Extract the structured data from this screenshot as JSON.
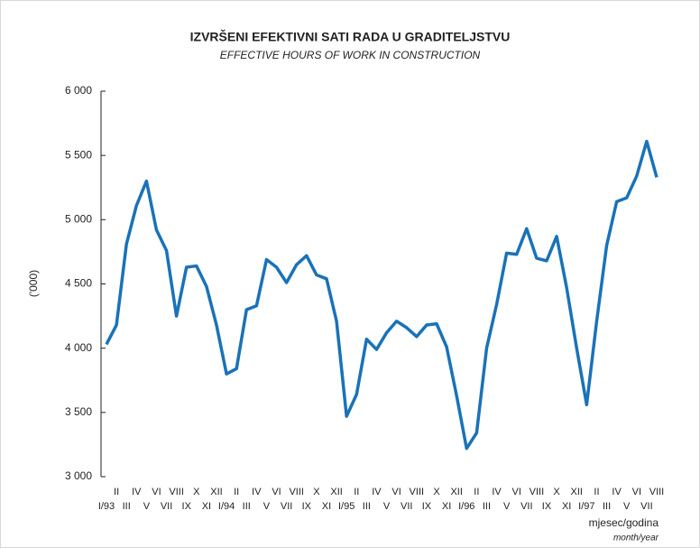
{
  "chart_data": {
    "type": "line",
    "title": "IZVRŠENI EFEKTIVNI SATI RADA U GRADITELJSTVU",
    "subtitle": "EFFECTIVE HOURS OF WORK IN CONSTRUCTION",
    "ylabel": "('000)",
    "xlabel": "mjesec/godina",
    "xlabel_en": "month/year",
    "categories": [
      "I/93",
      "II",
      "III",
      "IV",
      "V",
      "VI",
      "VII",
      "VIII",
      "IX",
      "X",
      "XI",
      "XII",
      "I/94",
      "II",
      "III",
      "IV",
      "V",
      "VI",
      "VII",
      "VIII",
      "IX",
      "X",
      "XI",
      "XII",
      "I/95",
      "II",
      "III",
      "IV",
      "V",
      "VI",
      "VII",
      "VIII",
      "IX",
      "X",
      "XI",
      "XII",
      "I/96",
      "II",
      "III",
      "IV",
      "V",
      "VI",
      "VII",
      "VIII",
      "IX",
      "X",
      "XI",
      "XII",
      "I/97",
      "II",
      "III",
      "IV",
      "V",
      "VI",
      "VII",
      "VIII"
    ],
    "series": [
      {
        "color": "#1a72b8",
        "values": [
          4030,
          4180,
          4810,
          5110,
          5300,
          4920,
          4760,
          4250,
          4630,
          4640,
          4480,
          4180,
          3800,
          3840,
          4300,
          4330,
          4690,
          4630,
          4510,
          4650,
          4720,
          4570,
          4540,
          4210,
          3470,
          3640,
          4070,
          3990,
          4120,
          4210,
          4160,
          4090,
          4180,
          4190,
          4010,
          3630,
          3220,
          3340,
          4000,
          4340,
          4740,
          4730,
          4930,
          4700,
          4680,
          4870,
          4470,
          4000,
          3560,
          4210,
          4800,
          5140,
          5170,
          5340,
          5610,
          5330
        ]
      }
    ],
    "ylim": [
      3000,
      6000
    ],
    "yticks": [
      {
        "value": 3000,
        "label": "3 000"
      },
      {
        "value": 3500,
        "label": "3 500"
      },
      {
        "value": 4000,
        "label": "4 000"
      },
      {
        "value": 4500,
        "label": "4 500"
      },
      {
        "value": 5000,
        "label": "5 000"
      },
      {
        "value": 5500,
        "label": "5 500"
      },
      {
        "value": 6000,
        "label": "6 000"
      }
    ],
    "grid": false
  }
}
